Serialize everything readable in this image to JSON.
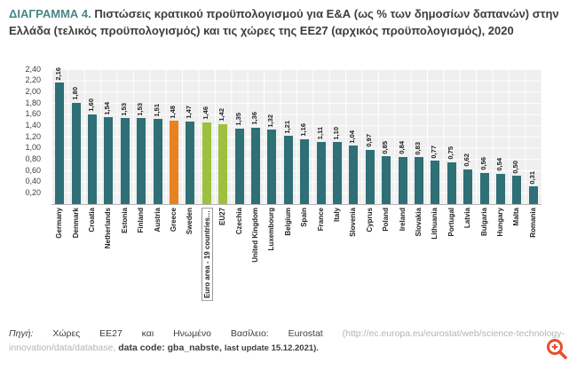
{
  "title": {
    "label": "ΔΙΑΓΡΑΜΜΑ 4.",
    "line1": "Πιστώσεις κρατικού προϋπολογισμού για Ε&Α (ως % των δημοσίων δαπανών)",
    "line2": "στην Ελλάδα (τελικός προϋπολογισμός) και τις χώρες της ΕΕ27 (αρχικός προϋπολογισμός), 2020"
  },
  "chart_data": {
    "type": "bar",
    "title": "Πιστώσεις κρατικού προϋπολογισμού για Ε&Α (ως % των δημοσίων δαπανών), 2020",
    "categories": [
      "Germany",
      "Denmark",
      "Croatia",
      "Netherlands",
      "Estonia",
      "Finland",
      "Austria",
      "Greece",
      "Sweden",
      "Euro area - 19 countries…",
      "EU27",
      "Czechia",
      "United Kingdom",
      "Luxembourg",
      "Belgium",
      "Spain",
      "France",
      "Italy",
      "Slovenia",
      "Cyprus",
      "Poland",
      "Ireland",
      "Slovakia",
      "Lithuania",
      "Portugal",
      "Latvia",
      "Bulgaria",
      "Hungary",
      "Malta",
      "Romania"
    ],
    "values": [
      2.16,
      1.8,
      1.6,
      1.54,
      1.53,
      1.53,
      1.51,
      1.48,
      1.47,
      1.46,
      1.42,
      1.35,
      1.36,
      1.32,
      1.21,
      1.16,
      1.11,
      1.1,
      1.04,
      0.97,
      0.85,
      0.84,
      0.83,
      0.77,
      0.75,
      0.62,
      0.56,
      0.54,
      0.5,
      0.31
    ],
    "ylim": [
      0,
      2.4
    ],
    "ytick_step": 0.2,
    "ytick_labels": [
      "2,40",
      "2,20",
      "2,00",
      "1,80",
      "1,60",
      "1,40",
      "1,20",
      "1,00",
      "0,80",
      "0,60",
      "0,40",
      "0,20"
    ],
    "decimal_separator": ",",
    "grid": true,
    "legend": "none",
    "plot_background": "#efefef",
    "colors": {
      "default": "#2e7075",
      "greece_highlight": "#e8821f",
      "aggregate_highlight": "#9dc13e"
    },
    "greece_index": 7,
    "aggregate_indices": [
      9,
      10
    ],
    "boxed_label_index": 9
  },
  "footer": {
    "source_label": "Πηγή:",
    "line1_main": "Χώρες ΕΕ27 και Ηνωμένο Βασίλειο:",
    "line1_org": "Eurostat",
    "line1_url": "(http://ec.europa.eu/eurostat/web/science-technology-",
    "line2_url": "innovation/data/database,",
    "line2_code": "data code: gba_nabste,",
    "line2_update": "last update 15.12.2021)."
  },
  "icons": {
    "zoom_icon_color": "#e5512d"
  },
  "accent_colors": {
    "title_teal": "#4a8688",
    "text_dark": "#3d3d3d"
  }
}
